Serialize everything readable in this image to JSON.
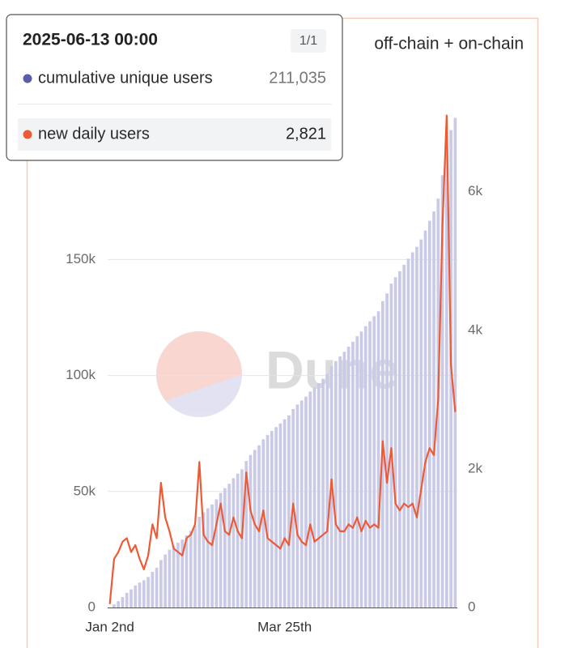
{
  "chart_data": {
    "type": "bar-line",
    "title": "off-chain + on-chain",
    "categories": [
      "Jan 2nd",
      null,
      null,
      null,
      null,
      null,
      null,
      null,
      null,
      null,
      null,
      null,
      null,
      null,
      null,
      null,
      null,
      null,
      null,
      null,
      null,
      null,
      null,
      null,
      null,
      null,
      null,
      null,
      null,
      null,
      null,
      null,
      null,
      null,
      null,
      null,
      null,
      null,
      null,
      null,
      null,
      "Mar 25th",
      null,
      null,
      null,
      null,
      null,
      null,
      null,
      null,
      null,
      null,
      null,
      null,
      null,
      null,
      null,
      null,
      null,
      null,
      null,
      null,
      null,
      null,
      null,
      null,
      null,
      null,
      null,
      null,
      null,
      null,
      null,
      null,
      null,
      null,
      null,
      null,
      null,
      null,
      null,
      null
    ],
    "series": [
      {
        "name": "cumulative unique users",
        "color": "#c9c9e8",
        "legend_color": "#5a5ea8",
        "type": "bar",
        "values": [
          100,
          1300,
          2750,
          4500,
          6330,
          7800,
          9460,
          10740,
          11750,
          13130,
          15330,
          17170,
          20470,
          22860,
          24880,
          26440,
          27910,
          29280,
          31120,
          33050,
          35250,
          39110,
          41030,
          42780,
          44430,
          46630,
          49390,
          51410,
          53340,
          55720,
          57740,
          59580,
          63160,
          65730,
          67930,
          69950,
          72520,
          74360,
          76100,
          77750,
          79320,
          81150,
          82800,
          85560,
          87490,
          89230,
          90880,
          93090,
          94830,
          96670,
          98590,
          100610,
          104010,
          106210,
          108230,
          110250,
          112450,
          114570,
          116950,
          118970,
          121270,
          123380,
          125580,
          127690,
          132100,
          135410,
          139630,
          142380,
          144950,
          147710,
          150370,
          153120,
          155510,
          158630,
          162490,
          166710,
          170750,
          176260,
          186360,
          199390,
          205810,
          211035
        ]
      },
      {
        "name": "new daily users",
        "color": "#ee5a36",
        "legend_color": "#ee5a36",
        "type": "line",
        "axis": "y2",
        "values": [
          50,
          700,
          800,
          950,
          1000,
          800,
          900,
          700,
          550,
          750,
          1200,
          1000,
          1800,
          1300,
          1100,
          850,
          800,
          750,
          1000,
          1050,
          1200,
          2100,
          1050,
          950,
          900,
          1200,
          1500,
          1100,
          1050,
          1300,
          1100,
          1000,
          1950,
          1400,
          1200,
          1100,
          1400,
          1000,
          950,
          900,
          850,
          1000,
          900,
          1500,
          1050,
          950,
          900,
          1200,
          950,
          1000,
          1050,
          1100,
          1850,
          1200,
          1100,
          1100,
          1200,
          1150,
          1300,
          1100,
          1250,
          1150,
          1200,
          1150,
          2400,
          1800,
          2300,
          1500,
          1400,
          1500,
          1450,
          1500,
          1300,
          1700,
          2100,
          2300,
          2200,
          3000,
          5500,
          7100,
          3500,
          2821
        ]
      }
    ],
    "ylim": [
      0,
      213000
    ],
    "yticks": [
      0,
      {
        "value": 50000,
        "label": "50k"
      },
      {
        "value": 100000,
        "label": "100k"
      },
      {
        "value": 150000,
        "label": "150k"
      }
    ],
    "y2lim": [
      0,
      7130
    ],
    "y2ticks": [
      0,
      {
        "value": 2000,
        "label": "2k"
      },
      {
        "value": 4000,
        "label": "4k"
      },
      {
        "value": 6000,
        "label": "6k"
      }
    ],
    "grid": true,
    "watermark": "Dune",
    "tooltip": {
      "title": "2025-06-13 00:00",
      "page": "1/1",
      "labels": [
        "211,035",
        "2,821"
      ],
      "highlight": 1
    }
  }
}
